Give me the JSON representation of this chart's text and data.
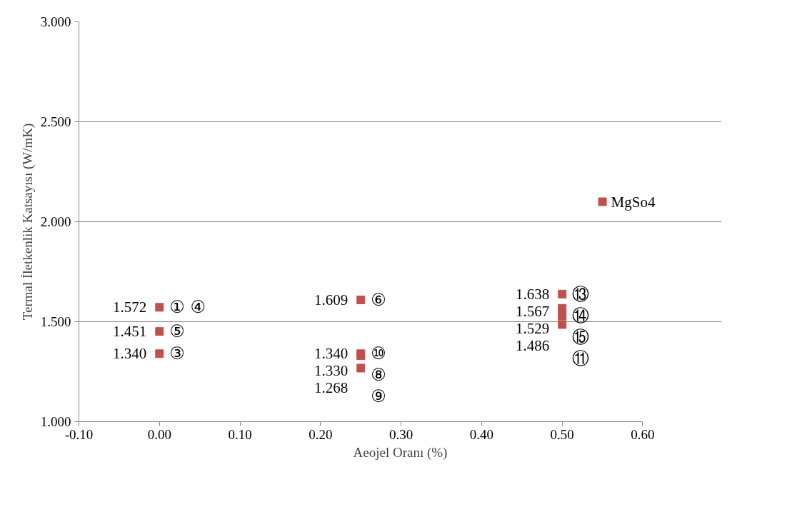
{
  "chart_data": {
    "type": "scatter",
    "xlabel": "Aeojel Oranı (%)",
    "ylabel": "Termal İletkenlik Katsayısı (W/mK)",
    "xlim": [
      -0.1,
      0.6
    ],
    "ylim": [
      1.0,
      3.0
    ],
    "xticks": [
      {
        "value": -0.1,
        "label": "-0.10"
      },
      {
        "value": 0.0,
        "label": "0.00"
      },
      {
        "value": 0.1,
        "label": "0.10"
      },
      {
        "value": 0.2,
        "label": "0.20"
      },
      {
        "value": 0.3,
        "label": "0.30"
      },
      {
        "value": 0.4,
        "label": "0.40"
      },
      {
        "value": 0.5,
        "label": "0.50"
      },
      {
        "value": 0.6,
        "label": "0.60"
      }
    ],
    "yticks": [
      {
        "value": 1.0,
        "label": "1.000"
      },
      {
        "value": 1.5,
        "label": "1.500"
      },
      {
        "value": 2.0,
        "label": "2.000"
      },
      {
        "value": 2.5,
        "label": "2.500"
      },
      {
        "value": 3.0,
        "label": "3.000"
      }
    ],
    "grid": "y",
    "marker": "square",
    "series": [
      {
        "color": "#c0504d",
        "x": [
          0.0,
          0.0,
          0.0,
          0.25,
          0.25,
          0.25,
          0.25,
          0.5,
          0.5,
          0.5,
          0.5
        ],
        "values": [
          1.572,
          1.451,
          1.34,
          1.609,
          1.34,
          1.33,
          1.268,
          1.638,
          1.567,
          1.529,
          1.486
        ],
        "value_labels": [
          "1.572",
          "1.451",
          "1.340",
          "1.609",
          "1.340",
          "1.330",
          "1.268",
          "1.638",
          "1.567",
          "1.529",
          "1.486"
        ]
      },
      {
        "name": "MgSo4",
        "color": "#c0504d",
        "x": [
          0.55
        ],
        "values": [
          2.1
        ]
      }
    ],
    "annotations": [
      {
        "text": "① ④",
        "x": 0.0,
        "y": 1.572
      },
      {
        "text": "⑤",
        "x": 0.0,
        "y": 1.451
      },
      {
        "text": "③",
        "x": 0.0,
        "y": 1.34
      },
      {
        "text": "⑥",
        "x": 0.25,
        "y": 1.609
      },
      {
        "text": "⑩",
        "x": 0.25,
        "y": 1.34
      },
      {
        "text": "⑧",
        "x": 0.25,
        "y": 1.33
      },
      {
        "text": "⑨",
        "x": 0.25,
        "y": 1.268
      },
      {
        "text": "⑬",
        "x": 0.5,
        "y": 1.638
      },
      {
        "text": "⑭",
        "x": 0.5,
        "y": 1.567
      },
      {
        "text": "⑮",
        "x": 0.5,
        "y": 1.529
      },
      {
        "text": "⑪",
        "x": 0.5,
        "y": 1.486
      }
    ]
  }
}
